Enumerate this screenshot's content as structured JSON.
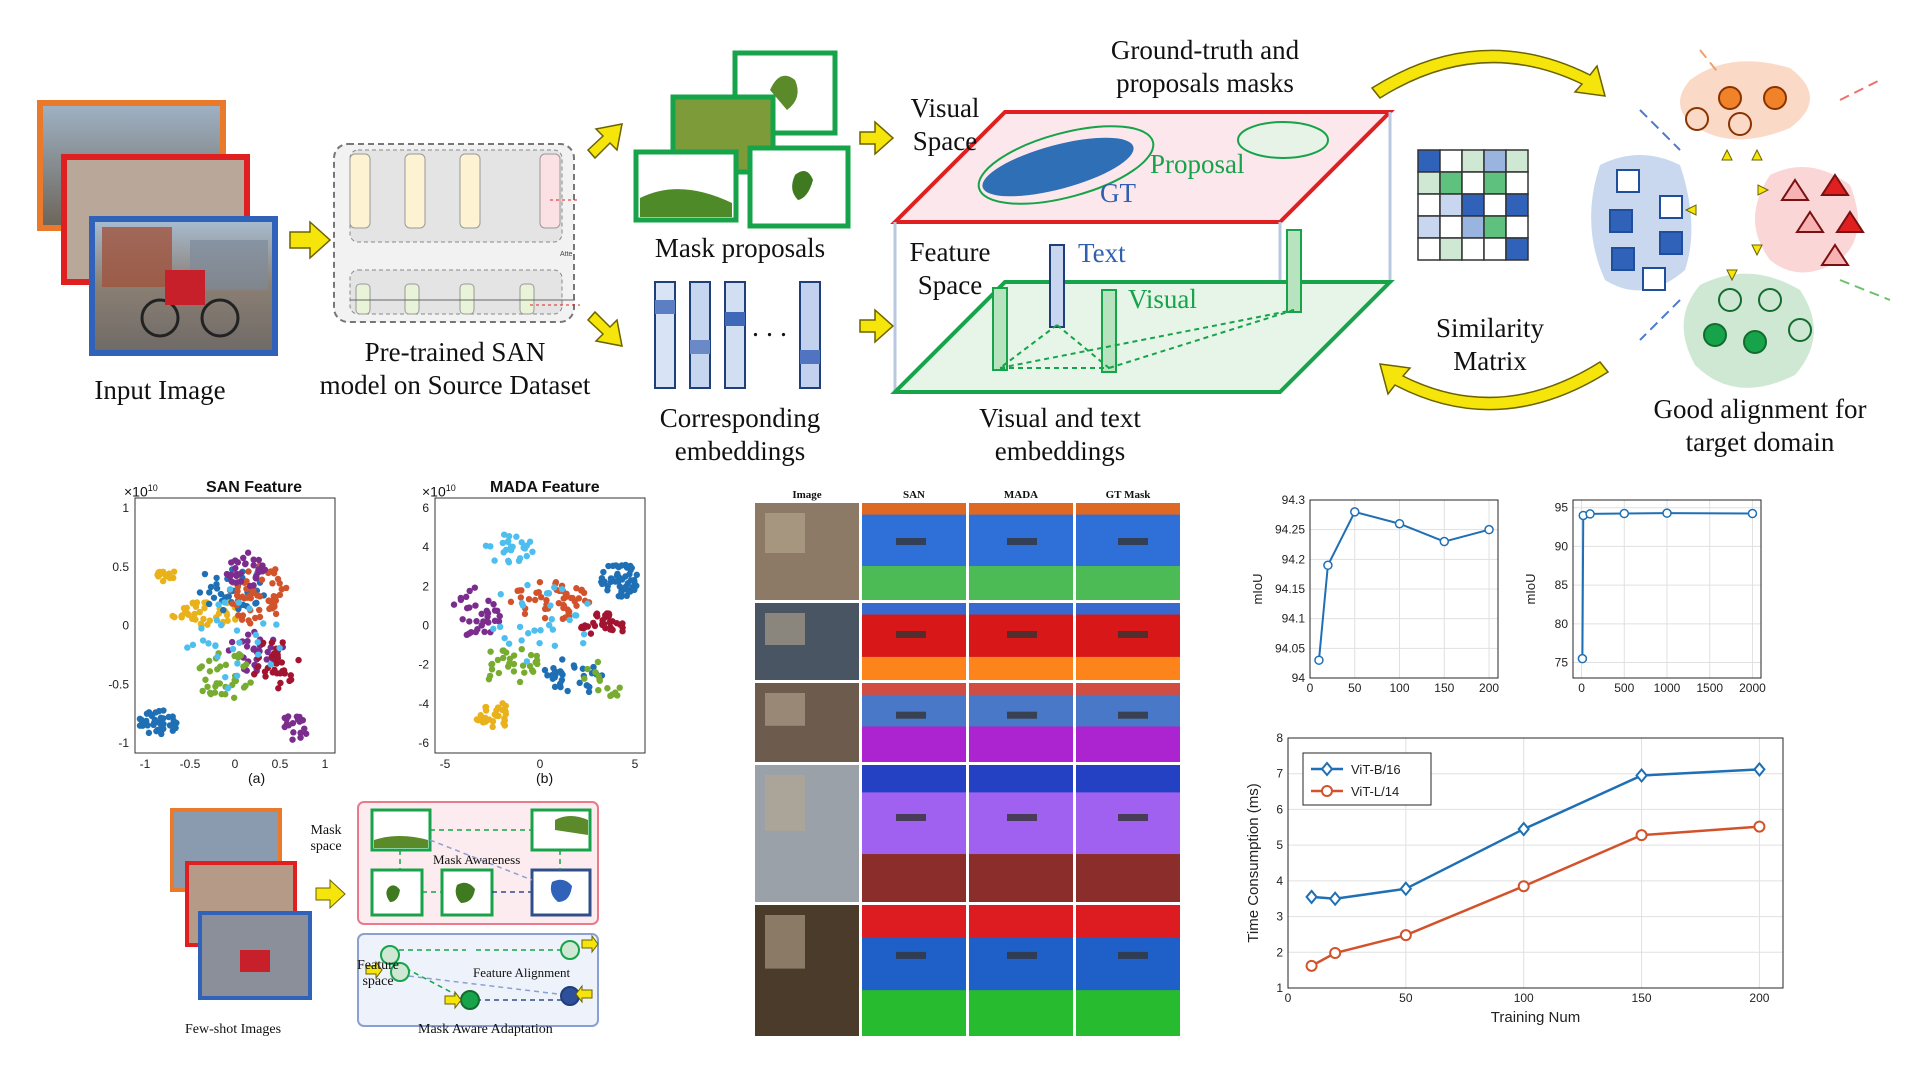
{
  "top_pipeline": {
    "input_caption": "Input Image",
    "san_caption_line1": "Pre-trained SAN",
    "san_caption_line2": "model on Source Dataset",
    "san_atte_label": "Atte",
    "mask_proposals": "Mask proposals",
    "embeddings_line1": "Corresponding",
    "embeddings_line2": "embeddings",
    "embeddings_dots": ". . .",
    "visual_space_line1": "Visual",
    "visual_space_line2": "Space",
    "gt_masks_line1": "Ground-truth and",
    "gt_masks_line2": "proposals masks",
    "proposal_label": "Proposal",
    "gt_label": "GT",
    "feature_space_line1": "Feature",
    "feature_space_line2": "Space",
    "text_label": "Text",
    "visual_label": "Visual",
    "vt_line1": "Visual and text",
    "vt_line2": "embeddings",
    "sim_line1": "Similarity",
    "sim_line2": "Matrix",
    "good_line1": "Good alignment for",
    "good_line2": "target domain"
  },
  "scatter_a": {
    "title": "SAN Feature",
    "exponent": "×10",
    "exponent_power": "10",
    "yticks": [
      "1",
      "0.5",
      "0",
      "-0.5",
      "-1"
    ],
    "xticks": [
      "-1",
      "-0.5",
      "0",
      "0.5",
      "1"
    ],
    "caption": "(a)"
  },
  "scatter_b": {
    "title": "MADA Feature",
    "exponent": "×10",
    "exponent_power": "10",
    "yticks": [
      "6",
      "4",
      "2",
      "0",
      "-2",
      "-4",
      "-6"
    ],
    "xticks": [
      "-5",
      "0",
      "5"
    ],
    "caption": "(b)"
  },
  "adaptation": {
    "mask_space_line1": "Mask",
    "mask_space_line2": "space",
    "mask_awareness": "Mask Awareness",
    "feature_space_line1": "Feature",
    "feature_space_line2": "space",
    "feature_alignment": "Feature Alignment",
    "few_shot": "Few-shot Images",
    "mask_aware": "Mask Aware Adaptation"
  },
  "seg_grid": {
    "headers": [
      "Image",
      "SAN",
      "MADA",
      "GT Mask"
    ]
  },
  "chart_data": [
    {
      "type": "line",
      "x": [
        10,
        20,
        50,
        100,
        150,
        200
      ],
      "y": [
        94.03,
        94.19,
        94.28,
        94.26,
        94.23,
        94.25
      ],
      "xlabel": "",
      "ylabel": "mIoU",
      "xlim": [
        0,
        210
      ],
      "ylim": [
        94,
        94.3
      ],
      "xticks": [
        "0",
        "50",
        "100",
        "150",
        "200"
      ],
      "yticks": [
        "94.3",
        "94.25",
        "94.2",
        "94.15",
        "94.1",
        "94.05",
        "94"
      ],
      "grid": true
    },
    {
      "type": "line",
      "x": [
        10,
        20,
        100,
        500,
        1000,
        2000
      ],
      "y": [
        75.5,
        94.0,
        94.2,
        94.25,
        94.3,
        94.25
      ],
      "xlabel": "",
      "ylabel": "mIoU",
      "xlim": [
        -100,
        2100
      ],
      "ylim": [
        73,
        96
      ],
      "xticks": [
        "0",
        "500",
        "1000",
        "1500",
        "2000"
      ],
      "yticks": [
        "95",
        "90",
        "85",
        "80",
        "75"
      ],
      "grid": true
    },
    {
      "type": "line",
      "categories": [
        10,
        20,
        50,
        100,
        150,
        200
      ],
      "series": [
        {
          "name": "ViT-B/16",
          "values": [
            3.55,
            3.5,
            3.78,
            5.45,
            6.95,
            7.12
          ],
          "color": "#1f6fb5"
        },
        {
          "name": "ViT-L/14",
          "values": [
            1.62,
            1.98,
            2.48,
            3.85,
            5.28,
            5.52
          ],
          "color": "#d2532b"
        }
      ],
      "xlabel": "Training Num",
      "ylabel": "Time Consumption (ms)",
      "xlim": [
        0,
        210
      ],
      "ylim": [
        1,
        8
      ],
      "xticks": [
        "0",
        "50",
        "100",
        "150",
        "200"
      ],
      "yticks": [
        "8",
        "7",
        "6",
        "5",
        "4",
        "3",
        "2",
        "1"
      ],
      "grid": true,
      "legend": "top-left"
    }
  ]
}
